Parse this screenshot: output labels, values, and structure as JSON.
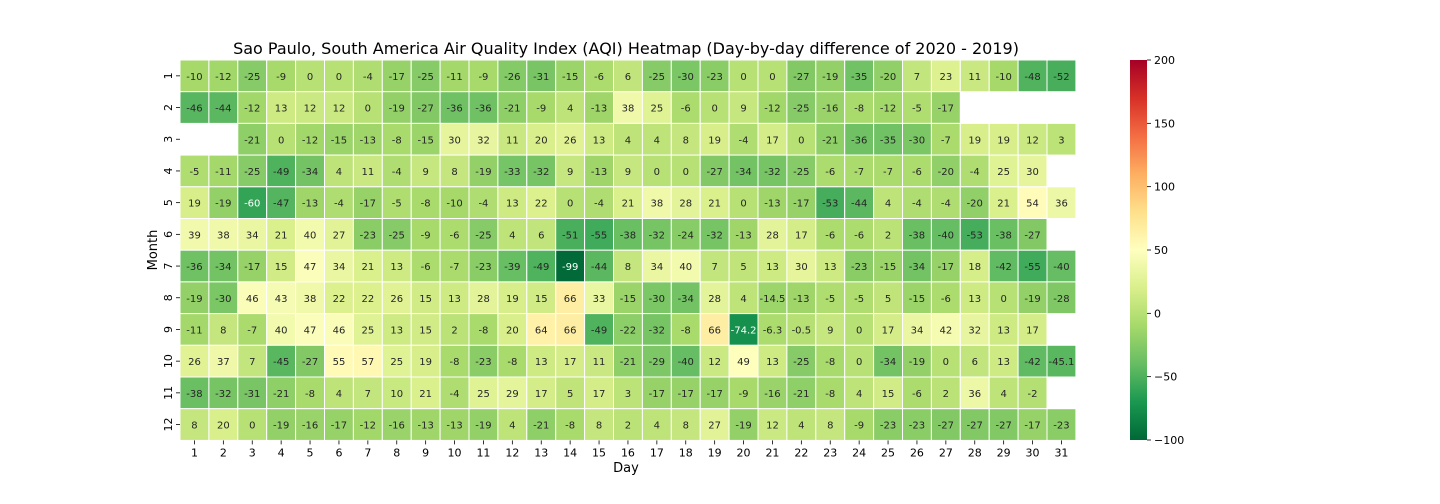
{
  "chart_data": {
    "type": "heatmap",
    "title": "Sao Paulo, South America Air Quality Index (AQI) Heatmap (Day-by-day difference of 2020 - 2019)",
    "xlabel": "Day",
    "ylabel": "Month",
    "x": [
      "1",
      "2",
      "3",
      "4",
      "5",
      "6",
      "7",
      "8",
      "9",
      "10",
      "11",
      "12",
      "13",
      "14",
      "15",
      "16",
      "17",
      "18",
      "19",
      "20",
      "21",
      "22",
      "23",
      "24",
      "25",
      "26",
      "27",
      "28",
      "29",
      "30",
      "31"
    ],
    "y": [
      "1",
      "2",
      "3",
      "4",
      "5",
      "6",
      "7",
      "8",
      "9",
      "10",
      "11",
      "12"
    ],
    "values": [
      [
        "-10",
        "-12",
        "-25",
        "-9",
        "0",
        "0",
        "-4",
        "-17",
        "-25",
        "-11",
        "-9",
        "-26",
        "-31",
        "-15",
        "-6",
        "6",
        "-25",
        "-30",
        "-23",
        "0",
        "0",
        "-27",
        "-19",
        "-35",
        "-20",
        "7",
        "23",
        "11",
        "-10",
        "-48",
        "-52"
      ],
      [
        "-46",
        "-44",
        "-12",
        "13",
        "12",
        "12",
        "0",
        "-19",
        "-27",
        "-36",
        "-36",
        "-21",
        "-9",
        "4",
        "-13",
        "38",
        "25",
        "-6",
        "0",
        "9",
        "-12",
        "-25",
        "-16",
        "-8",
        "-12",
        "-5",
        "-17",
        null,
        null,
        null,
        null
      ],
      [
        null,
        null,
        "-21",
        "0",
        "-12",
        "-15",
        "-13",
        "-8",
        "-15",
        "30",
        "32",
        "11",
        "20",
        "26",
        "13",
        "4",
        "4",
        "8",
        "19",
        "-4",
        "17",
        "0",
        "-21",
        "-36",
        "-35",
        "-30",
        "-7",
        "19",
        "19",
        "12",
        "3"
      ],
      [
        "-5",
        "-11",
        "-25",
        "-49",
        "-34",
        "4",
        "11",
        "-4",
        "9",
        "8",
        "-19",
        "-33",
        "-32",
        "9",
        "-13",
        "9",
        "0",
        "0",
        "-27",
        "-34",
        "-32",
        "-25",
        "-6",
        "-7",
        "-7",
        "-6",
        "-20",
        "-4",
        "25",
        "30",
        null
      ],
      [
        "19",
        "-19",
        "-60",
        "-47",
        "-13",
        "-4",
        "-17",
        "-5",
        "-8",
        "-10",
        "-4",
        "13",
        "22",
        "0",
        "-4",
        "21",
        "38",
        "28",
        "21",
        "0",
        "-13",
        "-17",
        "-53",
        "-44",
        "4",
        "-4",
        "-4",
        "-20",
        "21",
        "54",
        "36"
      ],
      [
        "39",
        "38",
        "34",
        "21",
        "40",
        "27",
        "-23",
        "-25",
        "-9",
        "-6",
        "-25",
        "4",
        "6",
        "-51",
        "-55",
        "-38",
        "-32",
        "-24",
        "-32",
        "-13",
        "28",
        "17",
        "-6",
        "-6",
        "2",
        "-38",
        "-40",
        "-53",
        "-38",
        "-27",
        null
      ],
      [
        "-36",
        "-34",
        "-17",
        "15",
        "47",
        "34",
        "21",
        "13",
        "-6",
        "-7",
        "-23",
        "-39",
        "-49",
        "-99",
        "-44",
        "8",
        "34",
        "40",
        "7",
        "5",
        "13",
        "30",
        "13",
        "-23",
        "-15",
        "-34",
        "-17",
        "18",
        "-42",
        "-55",
        "-40"
      ],
      [
        "-19",
        "-30",
        "46",
        "43",
        "38",
        "22",
        "22",
        "26",
        "15",
        "13",
        "28",
        "19",
        "15",
        "66",
        "33",
        "-15",
        "-30",
        "-34",
        "28",
        "4",
        "-14.5",
        "-13",
        "-5",
        "-5",
        "5",
        "-15",
        "-6",
        "13",
        "0",
        "-19",
        "-28"
      ],
      [
        "-11",
        "8",
        "-7",
        "40",
        "47",
        "46",
        "25",
        "13",
        "15",
        "2",
        "-8",
        "20",
        "64",
        "66",
        "-49",
        "-22",
        "-32",
        "-8",
        "66",
        "-74.2",
        "-6.3",
        "-0.5",
        "9",
        "0",
        "17",
        "34",
        "42",
        "32",
        "13",
        "17",
        null
      ],
      [
        "26",
        "37",
        "7",
        "-45",
        "-27",
        "55",
        "57",
        "25",
        "19",
        "-8",
        "-23",
        "-8",
        "13",
        "17",
        "11",
        "-21",
        "-29",
        "-40",
        "12",
        "49",
        "13",
        "-25",
        "-8",
        "0",
        "-34",
        "-19",
        "0",
        "6",
        "13",
        "-42",
        "-45.1"
      ],
      [
        "-38",
        "-32",
        "-31",
        "-21",
        "-8",
        "4",
        "7",
        "10",
        "21",
        "-4",
        "25",
        "29",
        "17",
        "5",
        "17",
        "3",
        "-17",
        "-17",
        "-17",
        "-9",
        "-16",
        "-21",
        "-8",
        "4",
        "15",
        "-6",
        "2",
        "36",
        "4",
        "-2",
        null
      ],
      [
        "8",
        "20",
        "0",
        "-19",
        "-16",
        "-17",
        "-12",
        "-16",
        "-13",
        "-13",
        "-19",
        "4",
        "-21",
        "-8",
        "8",
        "2",
        "4",
        "8",
        "27",
        "-19",
        "12",
        "4",
        "8",
        "-9",
        "-23",
        "-23",
        "-27",
        "-27",
        "-27",
        "-17",
        "-23"
      ]
    ],
    "colorbar": {
      "min": -100,
      "max": 200,
      "ticks": [
        "200",
        "150",
        "100",
        "50",
        "0",
        "−50",
        "−100"
      ],
      "tick_values": [
        200,
        150,
        100,
        50,
        0,
        -50,
        -100
      ],
      "colormap": "RdYlGn_r"
    },
    "grid": false,
    "legend": "colorbar-right"
  }
}
